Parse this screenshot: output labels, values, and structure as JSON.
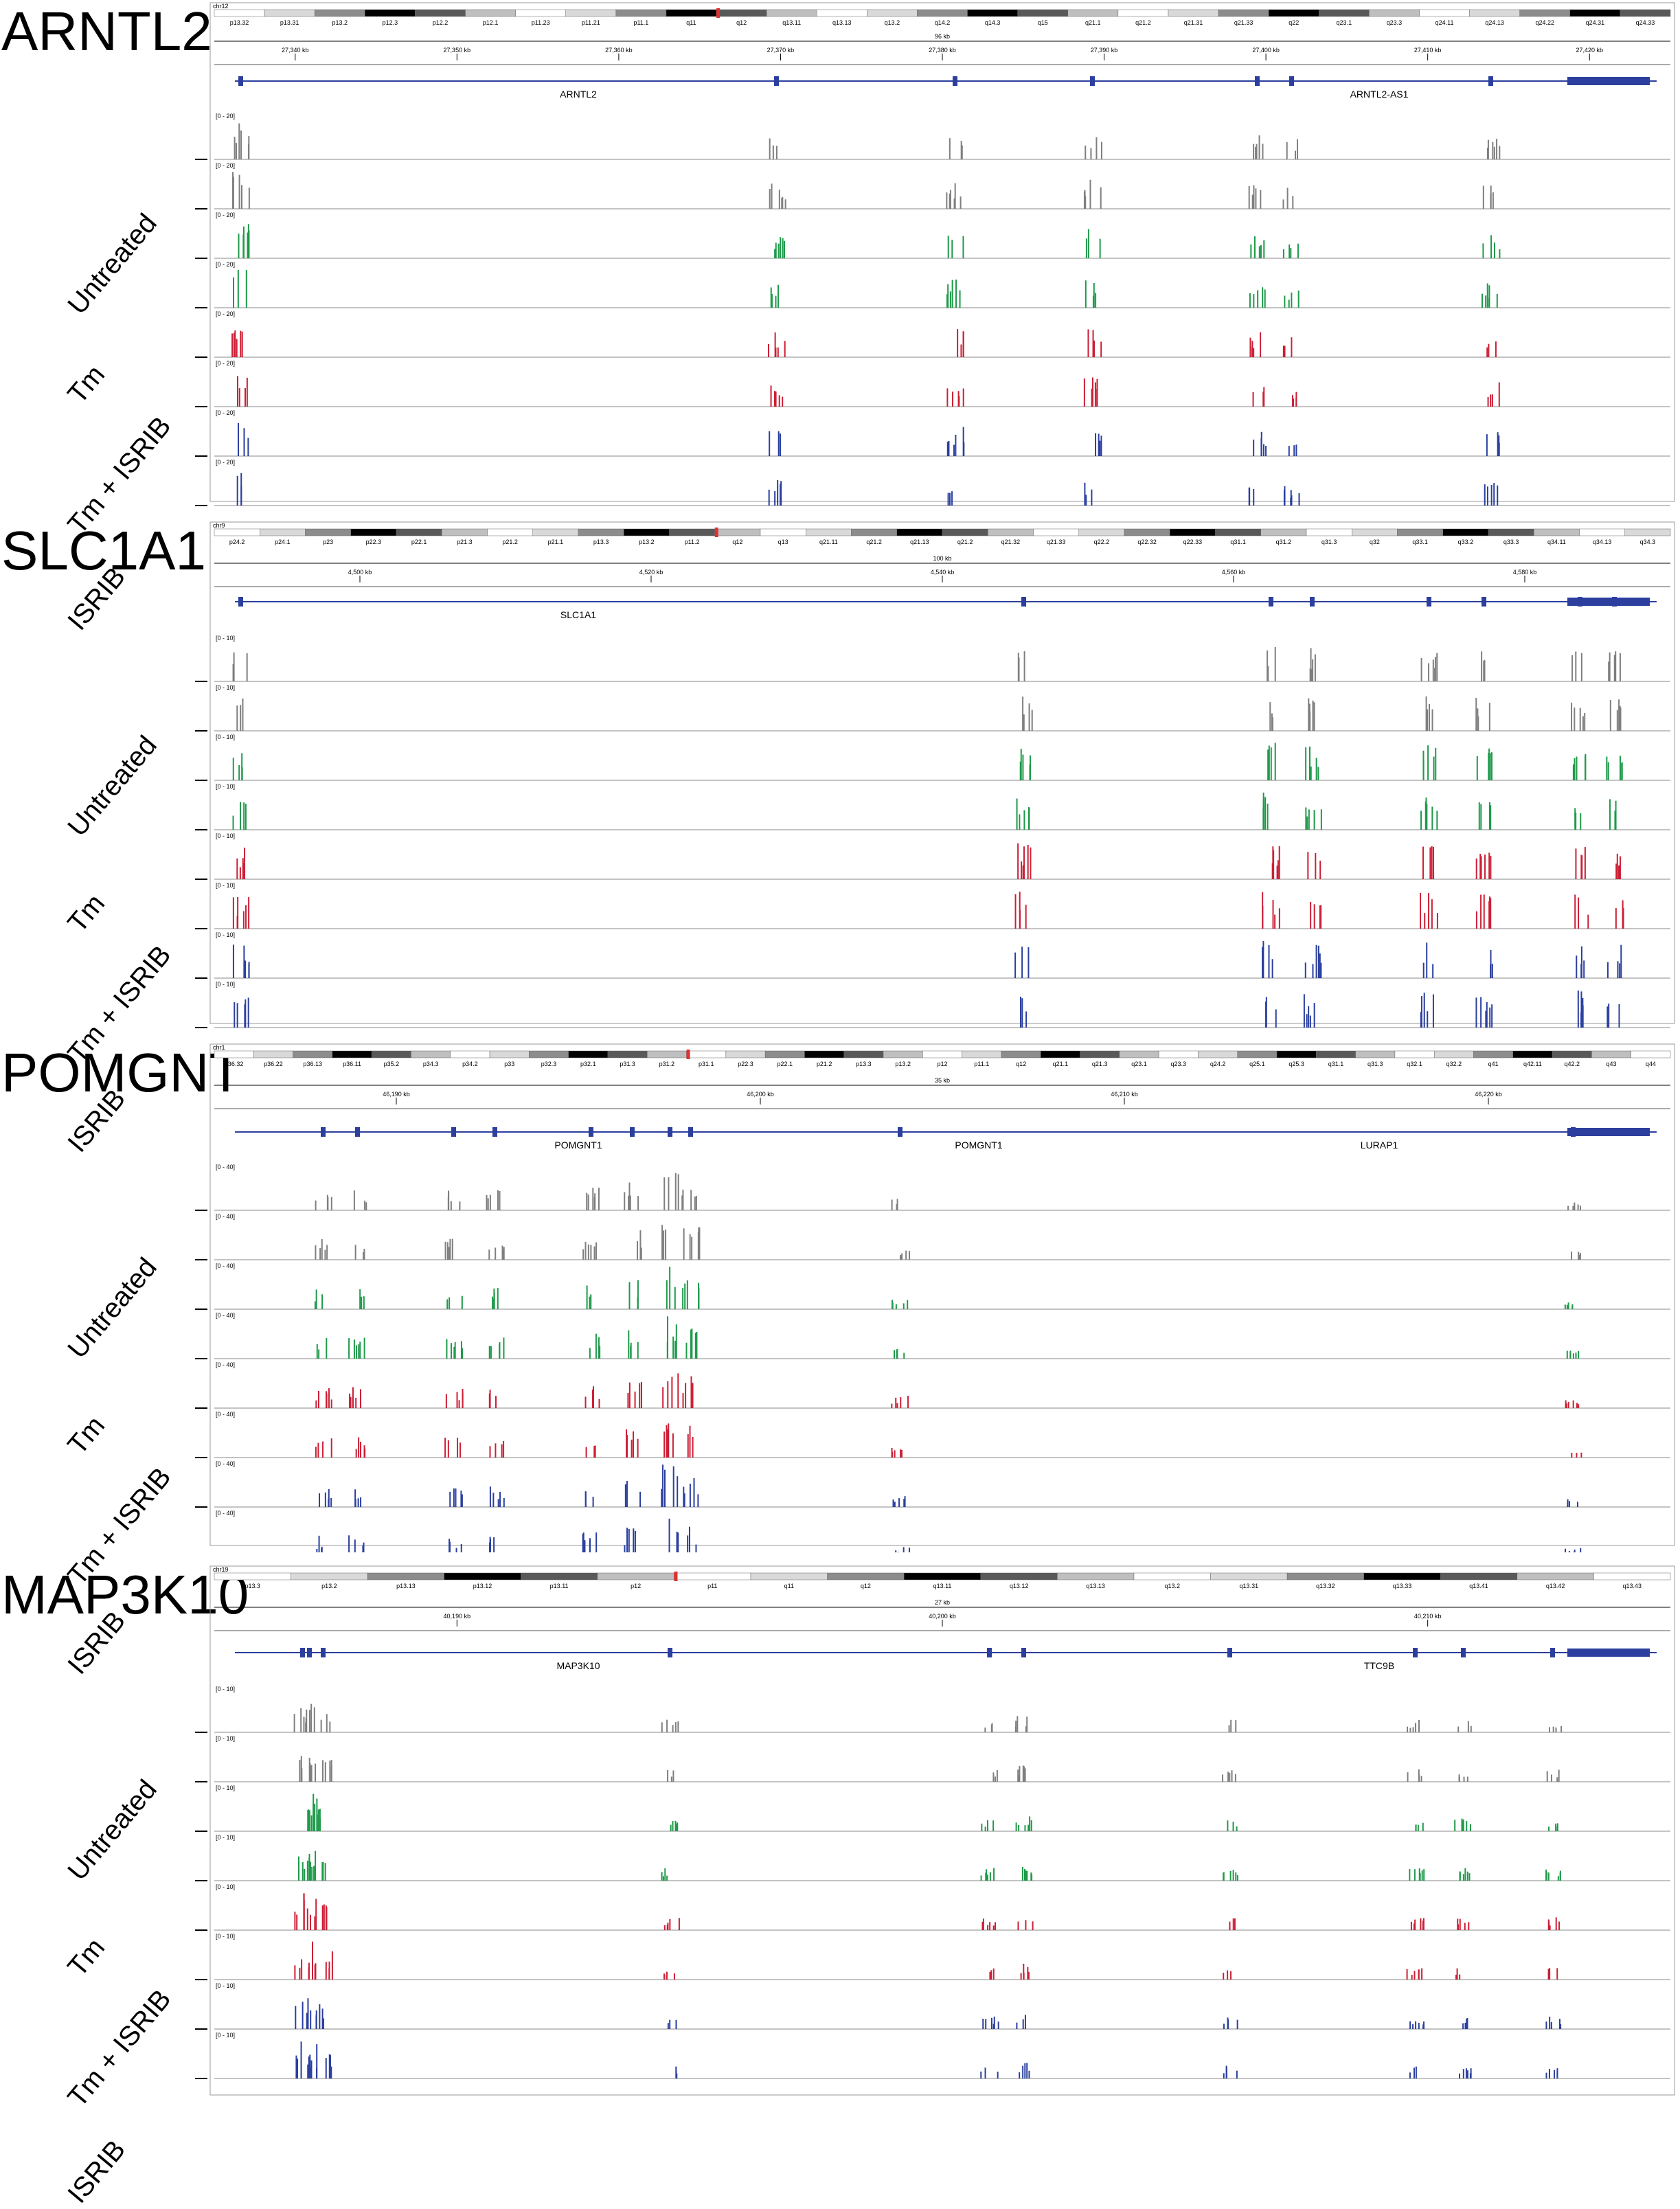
{
  "panels": [
    {
      "gene": "ARNTL2",
      "chrom": "chr12",
      "span": "96 kb",
      "bands": [
        "p13.32",
        "p13.31",
        "p13.2",
        "p12.3",
        "p12.2",
        "p12.1",
        "p11.23",
        "p11.21",
        "p11.1",
        "q11",
        "q12",
        "q13.11",
        "q13.13",
        "q13.2",
        "q14.2",
        "q14.3",
        "q15",
        "q21.1",
        "q21.2",
        "q21.31",
        "q21.33",
        "q22",
        "q23.1",
        "q23.3",
        "q24.11",
        "q24.13",
        "q24.22",
        "q24.31",
        "q24.33"
      ],
      "ticks": [
        "27,340 kb",
        "27,350 kb",
        "27,360 kb",
        "27,370 kb",
        "27,380 kb",
        "27,390 kb",
        "27,400 kb",
        "27,410 kb",
        "27,420 kb"
      ],
      "gene_labels": [
        "ARNTL2",
        "ARNTL2-AS1"
      ],
      "range_label": "[0 - 20]"
    },
    {
      "gene": "SLC1A1",
      "chrom": "chr9",
      "span": "100 kb",
      "bands": [
        "p24.2",
        "p24.1",
        "p23",
        "p22.3",
        "p22.1",
        "p21.3",
        "p21.2",
        "p21.1",
        "p13.3",
        "p13.2",
        "p11.2",
        "q12",
        "q13",
        "q21.11",
        "q21.2",
        "q21.13",
        "q21.2",
        "q21.32",
        "q21.33",
        "q22.2",
        "q22.32",
        "q22.33",
        "q31.1",
        "q31.2",
        "q31.3",
        "q32",
        "q33.1",
        "q33.2",
        "q33.3",
        "q34.11",
        "q34.13",
        "q34.3"
      ],
      "ticks": [
        "4,500 kb",
        "4,520 kb",
        "4,540 kb",
        "4,560 kb",
        "4,580 kb"
      ],
      "gene_labels": [
        "SLC1A1"
      ],
      "range_label": "[0 - 10]"
    },
    {
      "gene": "POMGNT",
      "chrom": "chr1",
      "span": "35 kb",
      "bands": [
        "p36.32",
        "p36.22",
        "p36.13",
        "p36.11",
        "p35.2",
        "p34.3",
        "p34.2",
        "p33",
        "p32.3",
        "p32.1",
        "p31.3",
        "p31.2",
        "p31.1",
        "p22.3",
        "p22.1",
        "p21.2",
        "p13.3",
        "p13.2",
        "p12",
        "p11.1",
        "q12",
        "q21.1",
        "q21.3",
        "q23.1",
        "q23.3",
        "q24.2",
        "q25.1",
        "q25.3",
        "q31.1",
        "q31.3",
        "q32.1",
        "q32.2",
        "q41",
        "q42.11",
        "q42.2",
        "q43",
        "q44"
      ],
      "ticks": [
        "46,190 kb",
        "46,200 kb",
        "46,210 kb",
        "46,220 kb"
      ],
      "gene_labels": [
        "POMGNT1",
        "POMGNT1",
        "LURAP1"
      ],
      "range_label": "[0 - 40]"
    },
    {
      "gene": "MAP3K10",
      "chrom": "chr19",
      "span": "27 kb",
      "bands": [
        "p13.3",
        "p13.2",
        "p13.13",
        "p13.12",
        "p13.11",
        "p12",
        "p11",
        "q11",
        "q12",
        "q13.11",
        "q13.12",
        "q13.13",
        "q13.2",
        "q13.31",
        "q13.32",
        "q13.33",
        "q13.41",
        "q13.42",
        "q13.43"
      ],
      "ticks": [
        "40,190 kb",
        "40,200 kb",
        "40,210 kb"
      ],
      "gene_labels": [
        "MAP3K10",
        "TTC9B"
      ],
      "range_label": "[0 - 10]"
    }
  ],
  "conditions": [
    {
      "name": "Untreated",
      "color": "#7f7f7f"
    },
    {
      "name": "Tm",
      "color": "#1f9a4a"
    },
    {
      "name": "Tm + ISRIB",
      "color": "#cc1f36"
    },
    {
      "name": "ISRIB",
      "color": "#2a3f9e"
    }
  ]
}
